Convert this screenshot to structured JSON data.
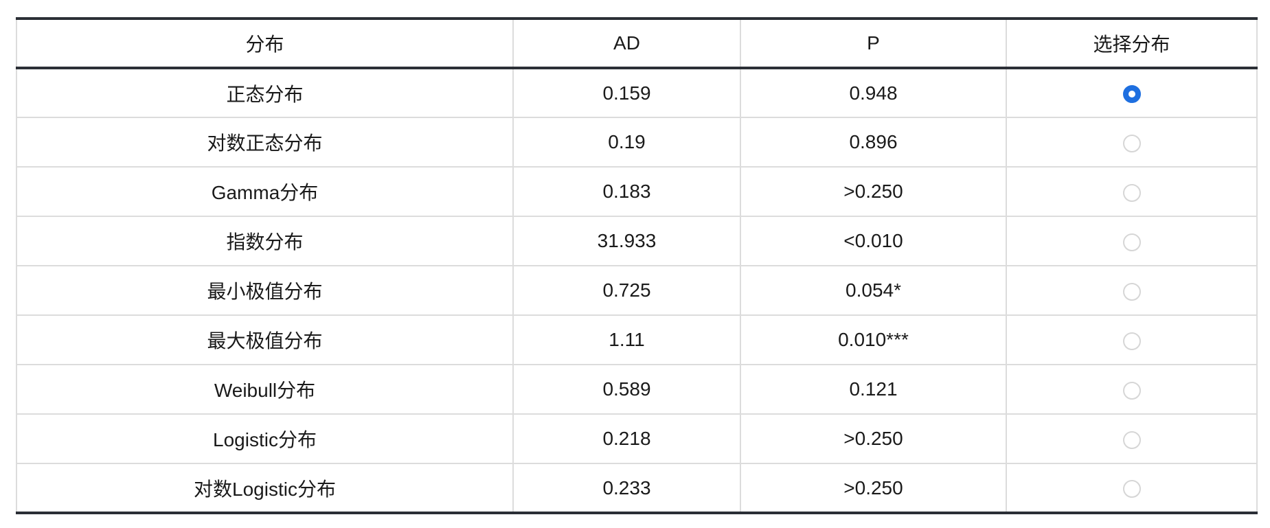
{
  "table": {
    "headers": [
      "分布",
      "AD",
      "P",
      "选择分布"
    ],
    "selected_index": 0,
    "rows": [
      {
        "distribution": "正态分布",
        "ad": "0.159",
        "p": "0.948"
      },
      {
        "distribution": "对数正态分布",
        "ad": "0.19",
        "p": "0.896"
      },
      {
        "distribution": "Gamma分布",
        "ad": "0.183",
        "p": ">0.250"
      },
      {
        "distribution": "指数分布",
        "ad": "31.933",
        "p": "<0.010"
      },
      {
        "distribution": "最小极值分布",
        "ad": "0.725",
        "p": "0.054*"
      },
      {
        "distribution": "最大极值分布",
        "ad": "1.11",
        "p": "0.010***"
      },
      {
        "distribution": "Weibull分布",
        "ad": "0.589",
        "p": "0.121"
      },
      {
        "distribution": "Logistic分布",
        "ad": "0.218",
        "p": ">0.250"
      },
      {
        "distribution": "对数Logistic分布",
        "ad": "0.233",
        "p": ">0.250"
      }
    ]
  },
  "colors": {
    "accent": "#1e6fe0",
    "rule": "#2b2f36",
    "grid": "#dcdcdc"
  }
}
